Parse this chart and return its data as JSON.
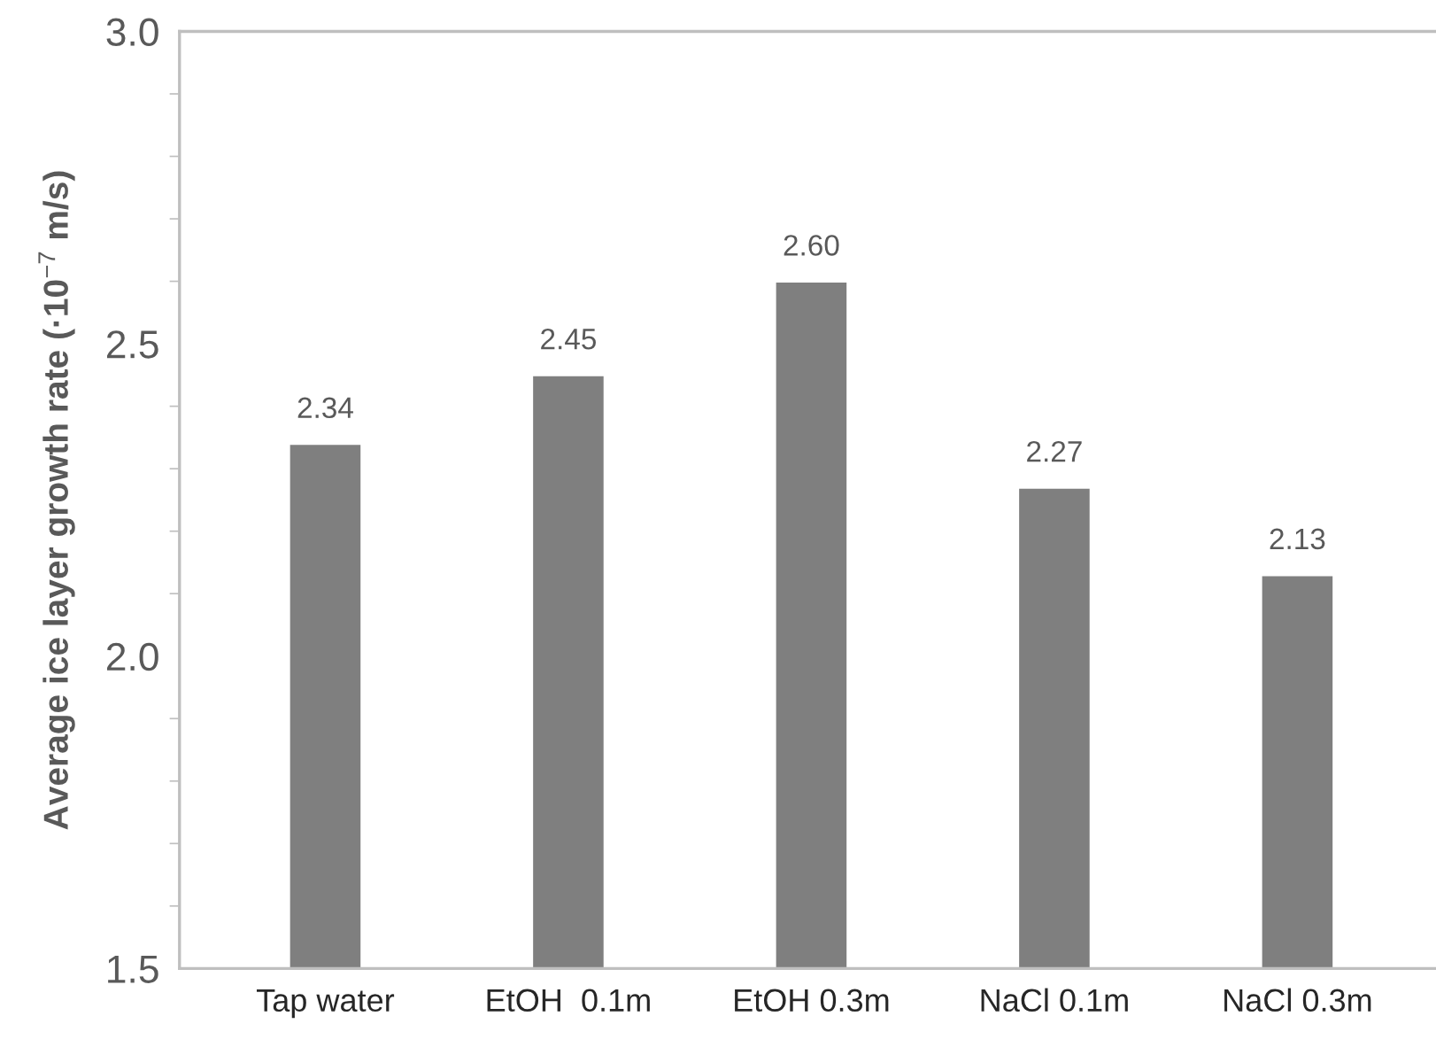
{
  "chart_data": {
    "type": "bar",
    "ylabel": "Average ice layer growth rate (·10$^{−7}$ m/s)",
    "categories": [
      "Tap water",
      "EtOH  0.1m",
      "EtOH 0.3m",
      "NaCl 0.1m",
      "NaCl 0.3m"
    ],
    "values": [
      2.34,
      2.45,
      2.6,
      2.27,
      2.13
    ],
    "color": "#7f7f7f",
    "value_labels": [
      "2.34",
      "2.45",
      "2.60",
      "2.27",
      "2.13"
    ],
    "ylim": [
      1.5,
      3.0
    ],
    "yticks": [
      {
        "value": 1.5,
        "label": "1.5"
      },
      {
        "value": 2.0,
        "label": "2.0"
      },
      {
        "value": 2.5,
        "label": "2.5"
      },
      {
        "value": 3.0,
        "label": "3.0"
      }
    ],
    "grid": false,
    "legend": false
  }
}
